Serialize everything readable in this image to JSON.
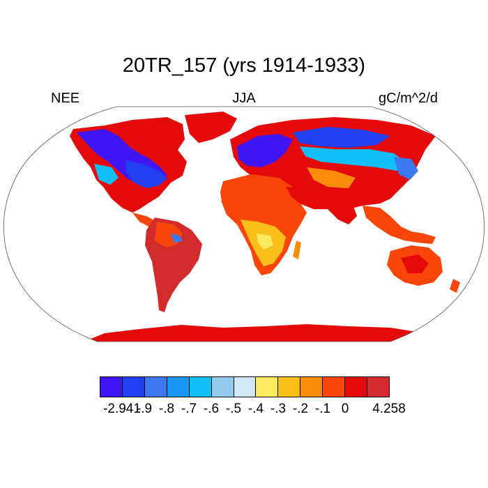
{
  "title": "20TR_157 (yrs 1914-1933)",
  "left_label": "NEE",
  "center_label": "JJA",
  "right_label": "gC/m^2/d",
  "legend": {
    "colors": [
      "#4016f6",
      "#1f3ff0",
      "#3c78ee",
      "#1a97f3",
      "#12bff8",
      "#91cbee",
      "#cfe9f8",
      "#fde960",
      "#fbbf1a",
      "#fa8c0c",
      "#f8460a",
      "#e50a0a",
      "#d32b2b"
    ],
    "labels": [
      "-2.941",
      "-.9",
      "-.8",
      "-.7",
      "-.6",
      "-.5",
      "-.4",
      "-.3",
      "-.2",
      "-.1",
      "0",
      "4.258"
    ]
  },
  "map": {
    "projection": "robinson",
    "ocean_color": "#ffffff",
    "variable": "NEE",
    "season": "JJA",
    "units": "gC/m^2/d"
  }
}
